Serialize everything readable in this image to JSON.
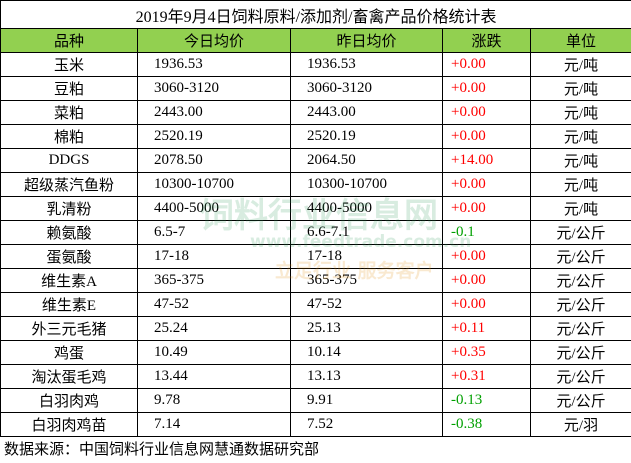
{
  "title": "2019年9月4日饲料原料/添加剂/畜禽产品价格统计表",
  "table": {
    "header": [
      "品种",
      "今日均价",
      "昨日均价",
      "涨跌",
      "单位"
    ],
    "rows": [
      [
        "玉米",
        "1936.53",
        "1936.53",
        "+0.00",
        "元/吨"
      ],
      [
        "豆粕",
        "3060-3120",
        "3060-3120",
        "+0.00",
        "元/吨"
      ],
      [
        "菜粕",
        "2443.00",
        "2443.00",
        "+0.00",
        "元/吨"
      ],
      [
        "棉粕",
        "2520.19",
        "2520.19",
        "+0.00",
        "元/吨"
      ],
      [
        "DDGS",
        "2078.50",
        "2064.50",
        "+14.00",
        "元/吨"
      ],
      [
        "超级蒸汽鱼粉",
        "10300-10700",
        "10300-10700",
        "+0.00",
        "元/吨"
      ],
      [
        "乳清粉",
        "4400-5000",
        "4400-5000",
        "+0.00",
        "元/吨"
      ],
      [
        "赖氨酸",
        "6.5-7",
        "6.6-7.1",
        "-0.1",
        "元/公斤"
      ],
      [
        "蛋氨酸",
        "17-18",
        "17-18",
        "+0.00",
        "元/公斤"
      ],
      [
        "维生素A",
        "365-375",
        "365-375",
        "+0.00",
        "元/公斤"
      ],
      [
        "维生素E",
        "47-52",
        "47-52",
        "+0.00",
        "元/公斤"
      ],
      [
        "外三元毛猪",
        "25.24",
        "25.13",
        "+0.11",
        "元/公斤"
      ],
      [
        "鸡蛋",
        "10.49",
        "10.14",
        "+0.35",
        "元/公斤"
      ],
      [
        "淘汰蛋毛鸡",
        "13.44",
        "13.13",
        "+0.31",
        "元/公斤"
      ],
      [
        "白羽肉鸡",
        "9.78",
        "9.91",
        "-0.13",
        "元/公斤"
      ],
      [
        "白羽肉鸡苗",
        "7.14",
        "7.52",
        "-0.38",
        "元/羽"
      ]
    ]
  },
  "footer": "数据来源：中国饲料行业信息网慧通数据研究部",
  "watermark": [
    "饲料行业信息网",
    "www.feedtrade.com.cn",
    "立足行业 服务客户"
  ]
}
